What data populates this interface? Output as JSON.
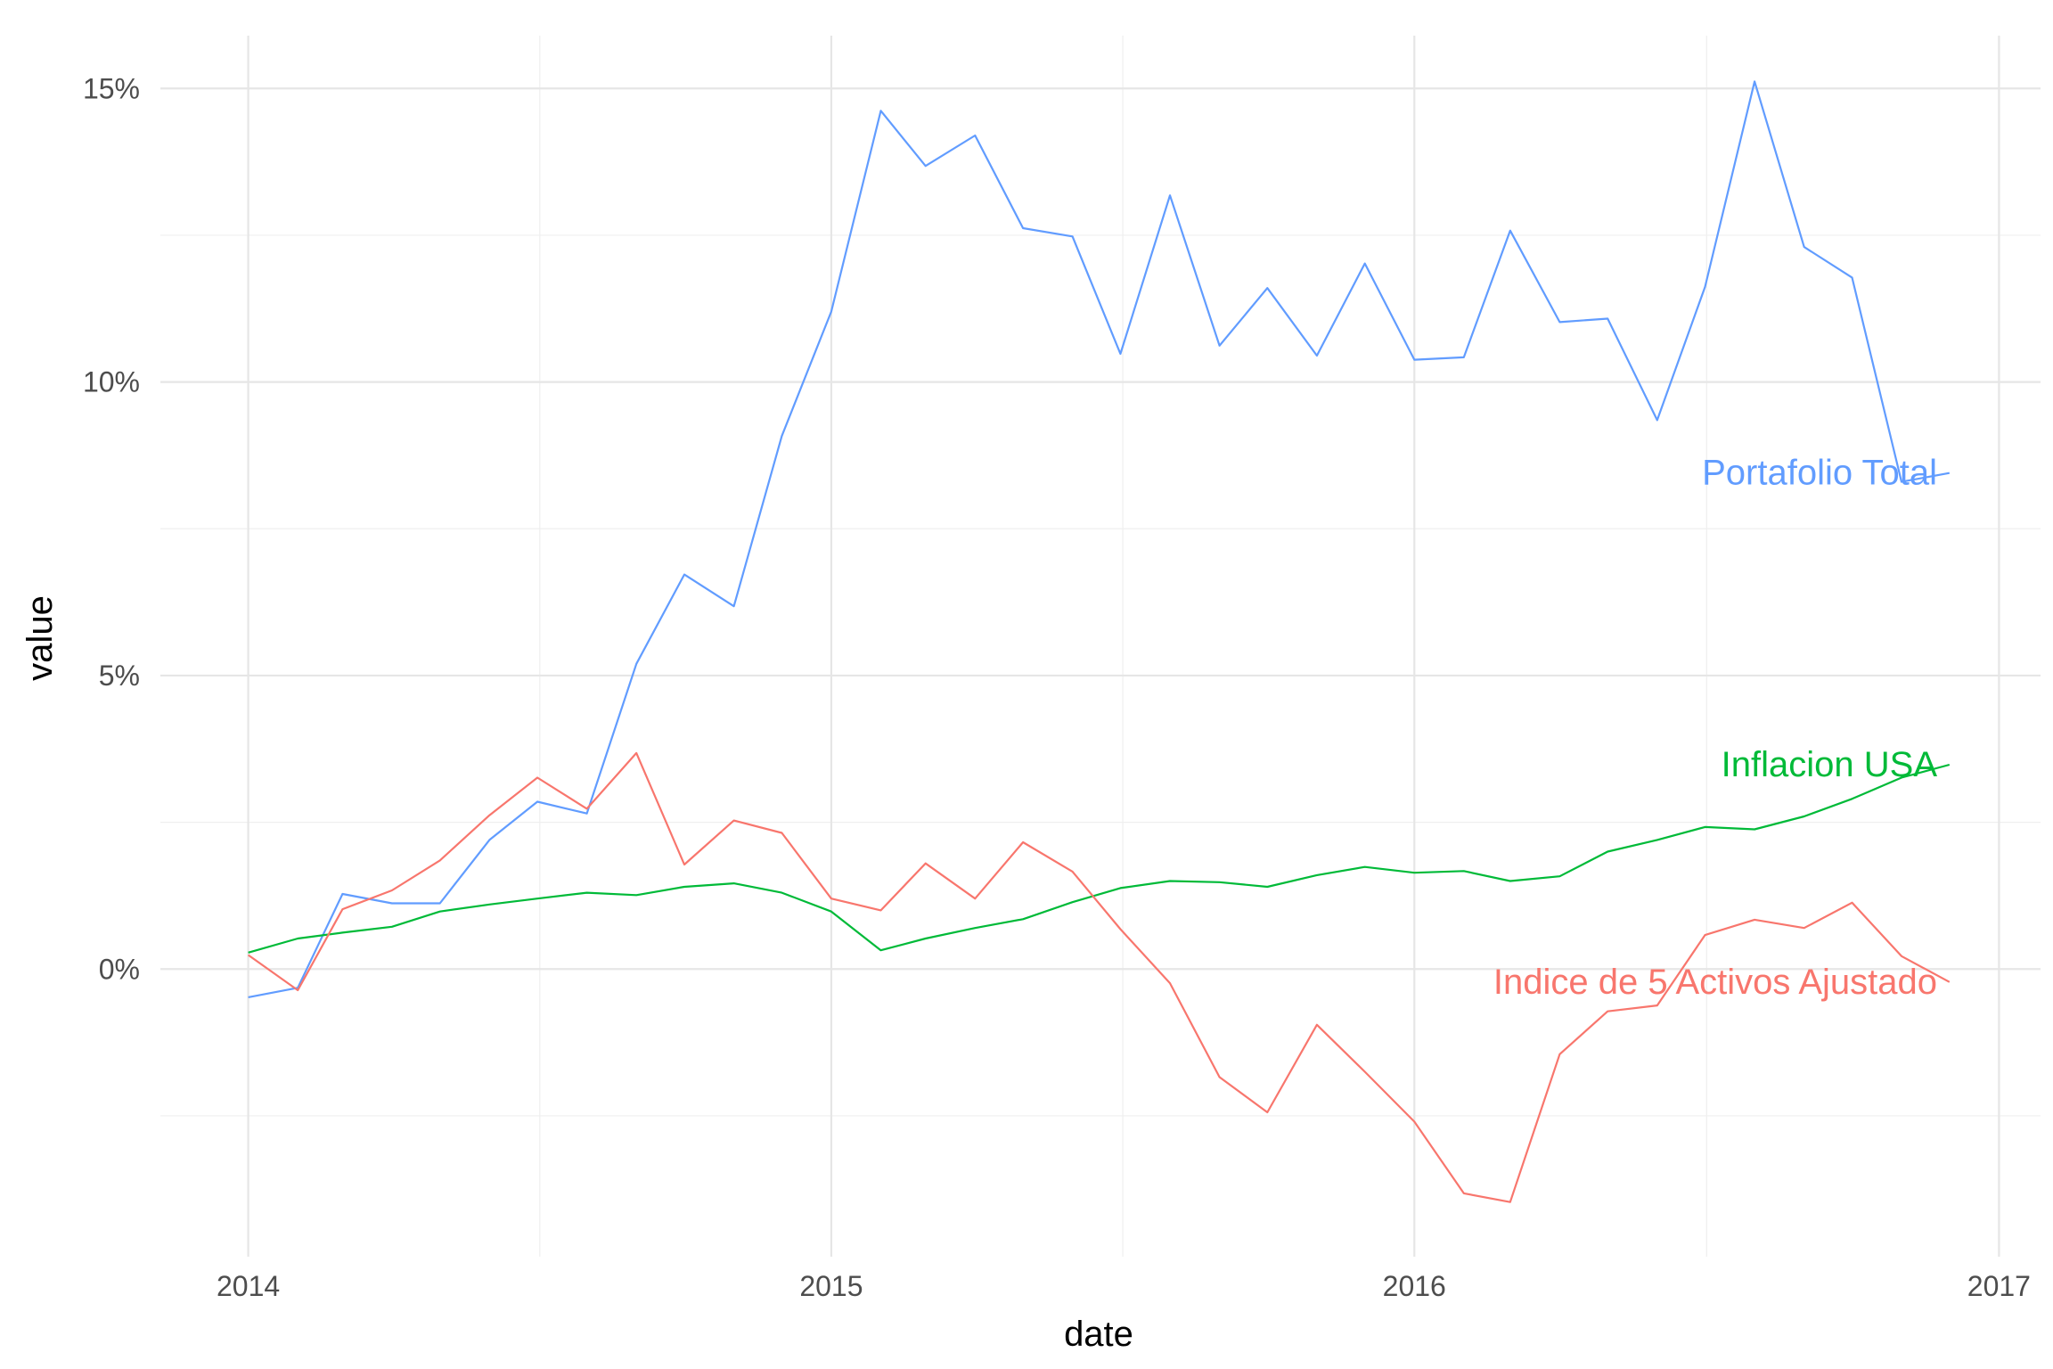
{
  "chart_data": {
    "type": "line",
    "xlabel": "date",
    "ylabel": "value",
    "x_ticks": [
      "2014",
      "2015",
      "2016",
      "2017"
    ],
    "y_ticks": [
      "0%",
      "5%",
      "10%",
      "15%"
    ],
    "xlim": [
      "2013-11-07",
      "2017-01-27"
    ],
    "ylim": [
      -4.9,
      15.9
    ],
    "grid": true,
    "legend": "none",
    "x": [
      "2014-01-01",
      "2014-02-01",
      "2014-03-01",
      "2014-04-01",
      "2014-05-01",
      "2014-06-01",
      "2014-07-01",
      "2014-08-01",
      "2014-09-01",
      "2014-10-01",
      "2014-11-01",
      "2014-12-01",
      "2015-01-01",
      "2015-02-01",
      "2015-03-01",
      "2015-04-01",
      "2015-05-01",
      "2015-06-01",
      "2015-07-01",
      "2015-08-01",
      "2015-09-01",
      "2015-10-01",
      "2015-11-01",
      "2015-12-01",
      "2016-01-01",
      "2016-02-01",
      "2016-03-01",
      "2016-04-01",
      "2016-05-01",
      "2016-06-01",
      "2016-07-01",
      "2016-08-01",
      "2016-09-01",
      "2016-10-01",
      "2016-11-01",
      "2016-12-01"
    ],
    "series": [
      {
        "name": "Portafolio Total",
        "color": "#619CFF",
        "values": [
          -0.48,
          -0.32,
          1.28,
          1.12,
          1.12,
          2.2,
          2.85,
          2.65,
          5.2,
          6.72,
          6.18,
          9.08,
          11.2,
          14.62,
          13.68,
          14.2,
          12.62,
          12.48,
          10.48,
          13.18,
          10.62,
          11.6,
          10.45,
          12.02,
          10.38,
          10.42,
          12.58,
          11.02,
          11.08,
          9.35,
          11.62,
          15.12,
          12.3,
          11.78,
          8.3,
          8.45
        ]
      },
      {
        "name": "Inflacion USA",
        "color": "#00BA38",
        "values": [
          0.28,
          0.52,
          0.62,
          0.72,
          0.98,
          1.1,
          1.2,
          1.3,
          1.26,
          1.4,
          1.46,
          1.3,
          0.98,
          0.32,
          0.52,
          0.7,
          0.85,
          1.14,
          1.38,
          1.5,
          1.48,
          1.4,
          1.6,
          1.74,
          1.64,
          1.67,
          1.5,
          1.58,
          2.0,
          2.2,
          2.42,
          2.38,
          2.6,
          2.9,
          3.26,
          3.48
        ]
      },
      {
        "name": "Indice de 5 Activos Ajustado",
        "color": "#F8766D",
        "values": [
          0.24,
          -0.36,
          1.02,
          1.34,
          1.85,
          2.62,
          3.26,
          2.73,
          3.68,
          1.78,
          2.53,
          2.32,
          1.2,
          1.0,
          1.8,
          1.2,
          2.16,
          1.66,
          0.68,
          -0.24,
          -1.84,
          -2.44,
          -0.95,
          -1.75,
          -2.6,
          -3.82,
          -3.97,
          -1.45,
          -0.72,
          -0.62,
          0.58,
          0.84,
          0.7,
          1.13,
          0.22,
          -0.22
        ]
      }
    ]
  }
}
